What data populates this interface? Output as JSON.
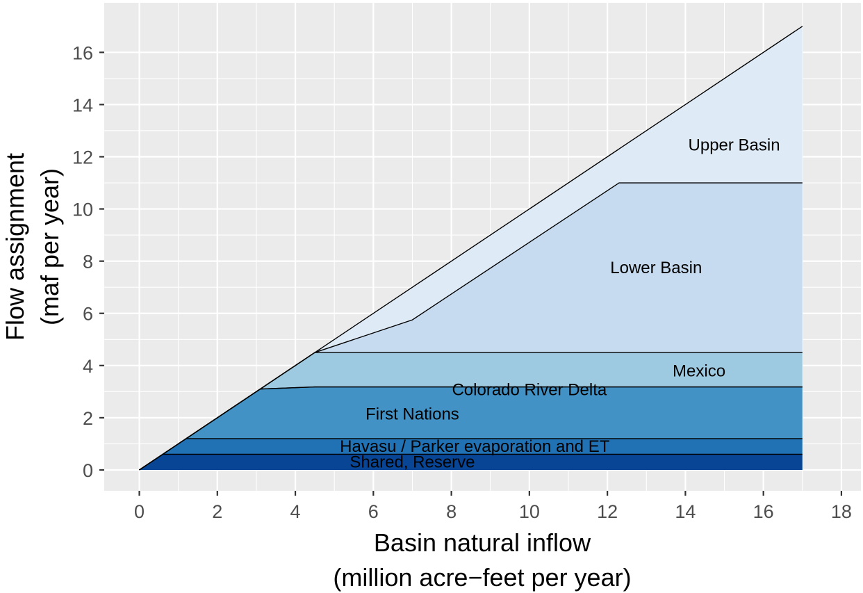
{
  "chart_data": {
    "type": "area",
    "title": "",
    "xlabel": "Basin natural inflow",
    "xlabel_line2": "(million acre−feet per year)",
    "ylabel": "Flow assignment",
    "ylabel_line2": "(maf per year)",
    "xlim": [
      -0.9,
      18.5
    ],
    "ylim": [
      -0.8,
      17.9
    ],
    "x_ticks": [
      "0",
      "2",
      "4",
      "6",
      "8",
      "10",
      "12",
      "14",
      "16",
      "18"
    ],
    "y_ticks": [
      "0",
      "2",
      "4",
      "6",
      "8",
      "10",
      "12",
      "14",
      "16"
    ],
    "grid": true,
    "legend": "none",
    "series": [
      {
        "name": "Shared, Reserve",
        "color": "#084594",
        "x": [
          0,
          0.6,
          17
        ],
        "lower": [
          0,
          0,
          0
        ],
        "upper": [
          0,
          0.6,
          0.6
        ]
      },
      {
        "name": "Havasu / Parker evaporation and ET",
        "color": "#2171b5",
        "x": [
          0,
          0.6,
          1.2,
          17
        ],
        "lower": [
          0,
          0.6,
          0.6,
          0.6
        ],
        "upper": [
          0,
          0.6,
          1.2,
          1.2
        ]
      },
      {
        "name": "First Nations",
        "color": "#4292c6",
        "x": [
          0,
          1.2,
          3.1,
          4.5,
          17
        ],
        "lower": [
          0,
          1.2,
          1.2,
          1.2,
          1.2
        ],
        "upper": [
          0,
          1.2,
          3.1,
          3.18,
          3.18
        ]
      },
      {
        "name": "Colorado River Delta",
        "color": "#6baed6",
        "x": [
          0,
          3.1,
          4.5,
          17
        ],
        "lower": [
          0,
          3.1,
          3.18,
          3.18
        ],
        "upper": [
          0,
          3.1,
          3.18,
          3.18
        ]
      },
      {
        "name": "Mexico",
        "color": "#9ecae1",
        "x": [
          0,
          3.1,
          4.5,
          17
        ],
        "lower": [
          0,
          3.1,
          3.18,
          3.18
        ],
        "upper": [
          0,
          3.1,
          4.5,
          4.5
        ]
      },
      {
        "name": "Lower Basin",
        "color": "#c6dbef",
        "x": [
          0,
          4.5,
          7.0,
          12.3,
          17
        ],
        "lower": [
          0,
          4.5,
          4.5,
          4.5,
          4.5
        ],
        "upper": [
          0,
          4.5,
          5.75,
          11.0,
          11.0
        ]
      },
      {
        "name": "Upper Basin",
        "color": "#deebf7",
        "x": [
          0,
          4.5,
          7.0,
          12.3,
          17
        ],
        "lower": [
          0,
          4.5,
          5.75,
          11.0,
          11.0
        ],
        "upper": [
          0,
          4.5,
          7.0,
          12.3,
          17
        ]
      }
    ],
    "annotations": [
      {
        "text": "Upper Basin",
        "x": 15.25,
        "y": 12.45
      },
      {
        "text": "Lower Basin",
        "x": 13.25,
        "y": 7.75
      },
      {
        "text": "Mexico",
        "x": 14.35,
        "y": 3.8
      },
      {
        "text": "Colorado River Delta",
        "x": 10.0,
        "y": 3.08
      },
      {
        "text": "First Nations",
        "x": 7.0,
        "y": 2.15
      },
      {
        "text": "Havasu / Parker evaporation and ET",
        "x": 8.6,
        "y": 0.9
      },
      {
        "text": "Shared, Reserve",
        "x": 7.0,
        "y": 0.3
      }
    ],
    "colors": {
      "panel": "#ebebeb",
      "grid": "#ffffff",
      "outline": "#000000"
    }
  }
}
